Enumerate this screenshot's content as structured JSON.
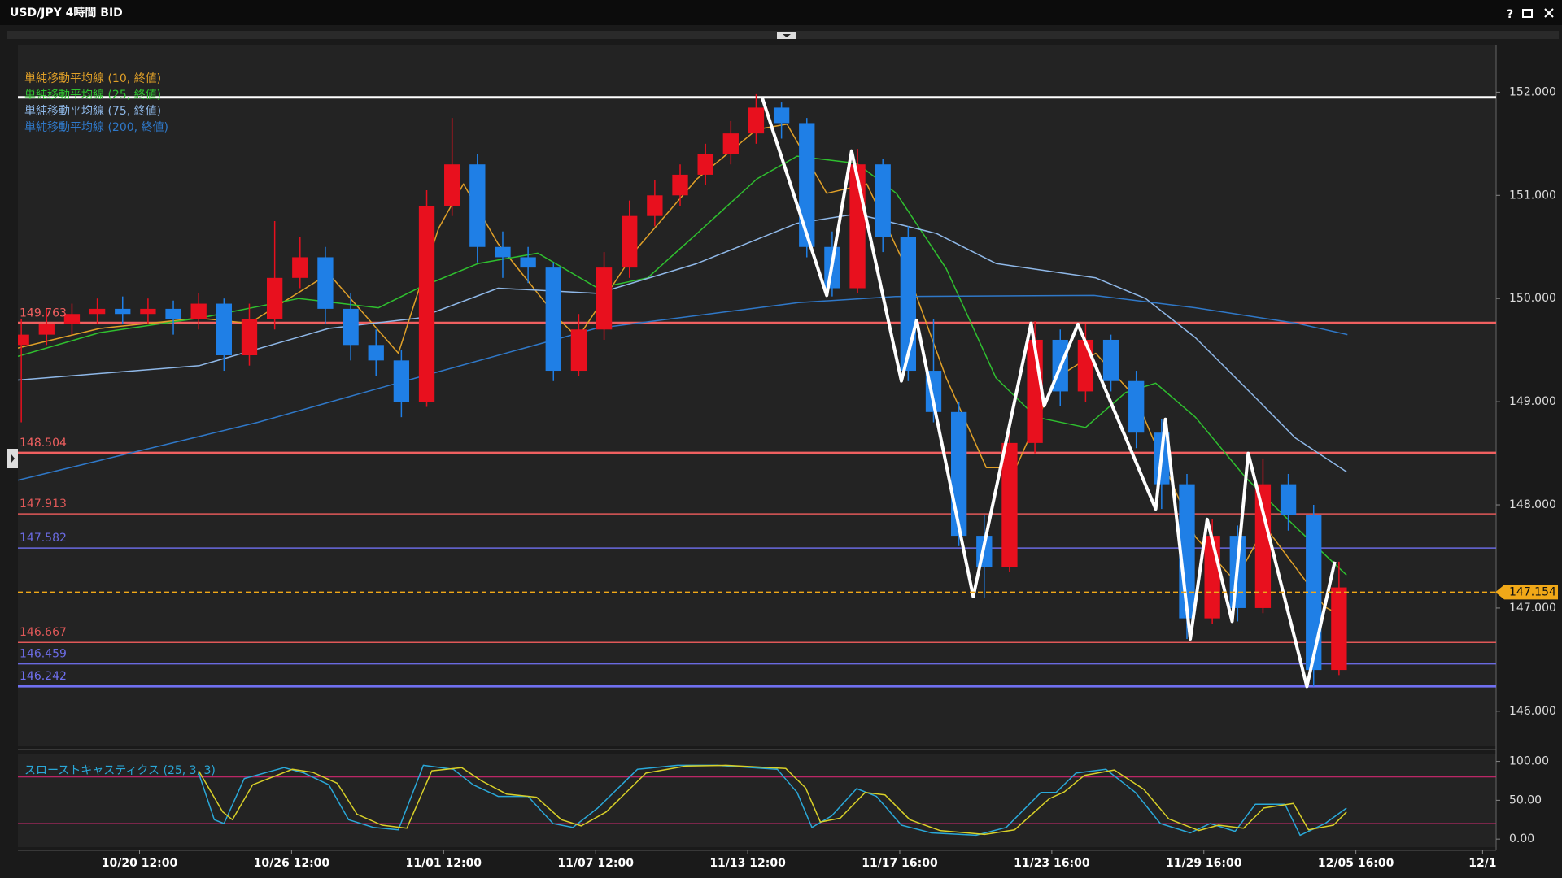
{
  "window": {
    "help": "?"
  },
  "chart_data": {
    "type": "candlestick",
    "title": "USD/JPY 4時間 BID",
    "up_color": "#e8101e",
    "down_color": "#1f7fe6",
    "xlim": [
      -28.8,
      321.2
    ],
    "xticks": [
      {
        "value": 0,
        "label": "10/20 12:00"
      },
      {
        "value": 36,
        "label": "10/26 12:00"
      },
      {
        "value": 72,
        "label": "11/01 12:00"
      },
      {
        "value": 108,
        "label": "11/07 12:00"
      },
      {
        "value": 144,
        "label": "11/13 12:00"
      },
      {
        "value": 180,
        "label": "11/17 16:00"
      },
      {
        "value": 216,
        "label": "11/23 16:00"
      },
      {
        "value": 252,
        "label": "11/29 16:00"
      },
      {
        "value": 288,
        "label": "12/05 16:00"
      },
      {
        "value": 318,
        "label": "12/1"
      }
    ],
    "ylim": [
      145.66,
      152.46
    ],
    "yticks": [
      {
        "value": 146,
        "label": "146.000"
      },
      {
        "value": 147,
        "label": "147.000"
      },
      {
        "value": 148,
        "label": "148.000"
      },
      {
        "value": 149,
        "label": "149.000"
      },
      {
        "value": 150,
        "label": "150.000"
      },
      {
        "value": 151,
        "label": "151.000"
      },
      {
        "value": 152,
        "label": "152.000"
      }
    ],
    "x": [
      -28,
      -22,
      -16,
      -10,
      -4,
      2,
      8,
      14,
      20,
      26,
      32,
      38,
      44,
      50,
      56,
      62,
      68,
      74,
      80,
      86,
      92,
      98,
      104,
      110,
      116,
      122,
      128,
      134,
      140,
      146,
      152,
      158,
      164,
      170,
      176,
      182,
      188,
      194,
      200,
      206,
      212,
      218,
      224,
      230,
      236,
      242,
      248,
      254,
      260,
      266,
      272,
      278,
      284
    ],
    "open": [
      149.55,
      149.65,
      149.75,
      149.85,
      149.9,
      149.85,
      149.9,
      149.8,
      149.95,
      149.45,
      149.8,
      150.2,
      150.4,
      149.9,
      149.55,
      149.4,
      149.0,
      150.9,
      151.3,
      150.5,
      150.4,
      150.3,
      149.3,
      149.7,
      150.3,
      150.8,
      151.0,
      151.2,
      151.4,
      151.6,
      151.85,
      151.7,
      150.5,
      150.1,
      151.3,
      150.6,
      149.3,
      148.9,
      147.7,
      147.4,
      148.6,
      149.6,
      149.1,
      149.6,
      149.2,
      148.7,
      148.2,
      146.9,
      147.7,
      147.0,
      148.2,
      147.9,
      146.4
    ],
    "high": [
      149.8,
      149.9,
      149.95,
      150.0,
      150.02,
      150.0,
      149.98,
      150.05,
      150.0,
      149.95,
      150.75,
      150.6,
      150.5,
      150.05,
      149.7,
      149.5,
      151.05,
      151.75,
      151.4,
      150.65,
      150.5,
      150.35,
      149.85,
      150.45,
      150.95,
      151.15,
      151.3,
      151.5,
      151.72,
      151.98,
      151.9,
      151.75,
      150.65,
      151.45,
      151.35,
      150.7,
      149.8,
      149.0,
      147.9,
      148.75,
      149.78,
      149.7,
      149.75,
      149.65,
      149.3,
      148.83,
      148.3,
      147.86,
      147.8,
      148.45,
      148.3,
      148.0,
      147.45
    ],
    "low": [
      148.8,
      149.55,
      149.65,
      149.75,
      149.75,
      149.75,
      149.65,
      149.7,
      149.3,
      149.35,
      149.7,
      150.1,
      149.75,
      149.4,
      149.25,
      148.85,
      148.95,
      150.8,
      150.35,
      150.2,
      150.15,
      149.2,
      149.25,
      149.6,
      150.2,
      150.7,
      150.9,
      151.1,
      151.3,
      151.5,
      151.55,
      150.4,
      150.02,
      150.05,
      150.45,
      149.2,
      148.8,
      147.6,
      147.1,
      147.35,
      148.5,
      148.96,
      149.0,
      149.1,
      148.55,
      147.96,
      146.7,
      146.85,
      146.87,
      146.95,
      147.75,
      146.24,
      146.35
    ],
    "close": [
      149.65,
      149.75,
      149.85,
      149.9,
      149.85,
      149.9,
      149.8,
      149.95,
      149.45,
      149.8,
      150.2,
      150.4,
      149.9,
      149.55,
      149.4,
      149.0,
      150.9,
      151.3,
      150.5,
      150.4,
      150.3,
      149.3,
      149.7,
      150.3,
      150.8,
      151.0,
      151.2,
      151.4,
      151.6,
      151.85,
      151.7,
      150.5,
      150.1,
      151.3,
      150.6,
      149.3,
      148.9,
      147.7,
      147.4,
      148.6,
      149.6,
      149.1,
      149.6,
      149.2,
      148.7,
      148.2,
      146.9,
      147.7,
      147.0,
      148.2,
      147.9,
      146.4,
      147.2
    ],
    "series": [
      {
        "name": "単純移動平均線 (10, 終値)",
        "color": "#e0a028",
        "x": [
          -28.8,
          -9.4,
          14.2,
          26,
          44.8,
          61.3,
          70.8,
          76.7,
          84.9,
          99,
          103.8,
          117.9,
          132,
          146.2,
          153.3,
          162.7,
          172.2,
          181.6,
          191,
          200.5,
          207.5,
          217,
          226.4,
          235.8,
          242.9,
          250,
          259.4,
          266.5,
          273.6,
          280.7,
          285.8
        ],
        "values": [
          149.52,
          149.71,
          149.81,
          149.76,
          150.24,
          149.47,
          150.68,
          151.11,
          150.53,
          149.81,
          149.62,
          150.49,
          151.16,
          151.64,
          151.69,
          151.02,
          151.11,
          150.29,
          149.23,
          148.36,
          148.36,
          149.23,
          149.47,
          149.04,
          148.36,
          147.69,
          147.26,
          147.79,
          147.4,
          147.01,
          146.9
        ]
      },
      {
        "name": "単純移動平均線 (25, 終値)",
        "color": "#2fc02f",
        "x": [
          -28.8,
          -9.4,
          14.2,
          37.7,
          56.6,
          66,
          80.2,
          94.3,
          108.5,
          120.3,
          132,
          146.2,
          155.7,
          169.8,
          179.2,
          191,
          202.8,
          212.3,
          224,
          233.5,
          240.6,
          250,
          261.8,
          273.6,
          285.8
        ],
        "values": [
          149.44,
          149.67,
          149.81,
          150.0,
          149.91,
          150.1,
          150.34,
          150.44,
          150.1,
          150.2,
          150.63,
          151.16,
          151.38,
          151.31,
          151.02,
          150.29,
          149.23,
          148.85,
          148.75,
          149.09,
          149.18,
          148.85,
          148.27,
          147.79,
          147.32
        ]
      },
      {
        "name": "単純移動平均線 (75, 終値)",
        "color": "#8fb8e8",
        "x": [
          -28.8,
          14.2,
          44.8,
          66,
          84.9,
          108.5,
          132,
          155.7,
          169.8,
          188.7,
          202.8,
          226.4,
          238.2,
          250,
          264.2,
          273.6,
          285.8
        ],
        "values": [
          149.21,
          149.35,
          149.71,
          149.81,
          150.1,
          150.05,
          150.34,
          150.73,
          150.82,
          150.63,
          150.34,
          150.2,
          150.0,
          149.62,
          149.04,
          148.65,
          148.32
        ]
      },
      {
        "name": "単純移動平均線 (200, 終値)",
        "color": "#2f78c8",
        "x": [
          -28.8,
          28,
          61,
          108,
          156,
          179,
          226,
          250,
          274,
          286
        ],
        "values": [
          148.24,
          148.8,
          149.18,
          149.71,
          149.96,
          150.02,
          150.03,
          149.91,
          149.76,
          149.65
        ]
      }
    ],
    "zigzag": {
      "color": "#ffffff",
      "x": [
        147.4,
        162.7,
        168.6,
        180.4,
        184,
        197.4,
        211.1,
        214.2,
        222.2,
        240.6,
        242.9,
        248.8,
        252.8,
        258.7,
        262.5,
        276.4,
        283
      ],
      "values": [
        151.95,
        150.03,
        151.43,
        149.2,
        149.79,
        147.11,
        149.76,
        148.96,
        149.75,
        147.96,
        148.83,
        146.7,
        147.86,
        146.87,
        148.5,
        146.24,
        147.45
      ]
    },
    "high_line": {
      "value": 151.95,
      "color": "#ffffff"
    },
    "levels": [
      {
        "value": 149.763,
        "color": "#f06060",
        "width": 3
      },
      {
        "value": 148.504,
        "color": "#f06060",
        "width": 3
      },
      {
        "value": 147.913,
        "color": "#e05858",
        "width": 1.5
      },
      {
        "value": 147.582,
        "color": "#6a6ae0",
        "width": 1.5
      },
      {
        "value": 146.667,
        "color": "#e05858",
        "width": 1.5
      },
      {
        "value": 146.459,
        "color": "#6a6ae0",
        "width": 1.5
      },
      {
        "value": 146.242,
        "color": "#7070f0",
        "width": 3
      }
    ],
    "current": {
      "value": 147.154,
      "color": "#f0a818"
    },
    "stochastic": {
      "title": "スローストキャスティクス (25, 3, 3)",
      "ylim": [
        -10.3,
        109
      ],
      "yticks": [
        {
          "value": 0,
          "label": "0.00"
        },
        {
          "value": 50,
          "label": "50.00"
        },
        {
          "value": 100,
          "label": "100.00"
        }
      ],
      "levels": [
        20,
        80
      ],
      "level_color": "#d02870",
      "series": [
        {
          "color": "#2aa8d8",
          "x": [
            14,
            17.7,
            20,
            24.8,
            34.2,
            39,
            44.8,
            49.5,
            55.4,
            61.3,
            67.2,
            74.3,
            79,
            84.9,
            92,
            97.9,
            102.6,
            108.5,
            117.9,
            127.4,
            136.8,
            151,
            155.7,
            159.2,
            163.9,
            169.8,
            174.5,
            180.4,
            187.5,
            198.1,
            205.2,
            213.4,
            217,
            221.7,
            228.8,
            235.8,
            241.7,
            248.8,
            253.5,
            259.4,
            264.2,
            271.2,
            274.8,
            280.7,
            285.8
          ],
          "values": [
            85,
            25,
            20,
            78,
            92,
            85,
            70,
            25,
            15,
            12,
            95,
            90,
            70,
            55,
            55,
            20,
            15,
            40,
            90,
            95,
            95,
            90,
            60,
            15,
            30,
            65,
            55,
            18,
            8,
            5,
            15,
            60,
            60,
            85,
            90,
            60,
            20,
            8,
            20,
            10,
            45,
            45,
            5,
            20,
            40
          ]
        },
        {
          "color": "#d8d028",
          "x": [
            14,
            19.7,
            22,
            26.8,
            36.2,
            41,
            46.8,
            51.5,
            57.4,
            63.3,
            69.2,
            76.3,
            81,
            86.9,
            94,
            99.9,
            104.6,
            110.5,
            119.9,
            129.4,
            138.8,
            153,
            157.7,
            161.2,
            165.9,
            171.8,
            176.5,
            182.4,
            189.5,
            200.1,
            207.2,
            215.4,
            219,
            223.7,
            230.8,
            237.8,
            243.7,
            250.8,
            255.5,
            261.4,
            266.2,
            273.2,
            276.8,
            282.7,
            285.8
          ],
          "values": [
            88,
            35,
            25,
            70,
            90,
            86,
            72,
            32,
            18,
            14,
            88,
            92,
            75,
            58,
            54,
            25,
            17,
            35,
            85,
            94,
            95,
            91,
            66,
            22,
            27,
            60,
            57,
            25,
            11,
            6,
            12,
            52,
            61,
            82,
            89,
            64,
            26,
            11,
            18,
            14,
            40,
            46,
            12,
            18,
            35
          ]
        }
      ]
    }
  }
}
